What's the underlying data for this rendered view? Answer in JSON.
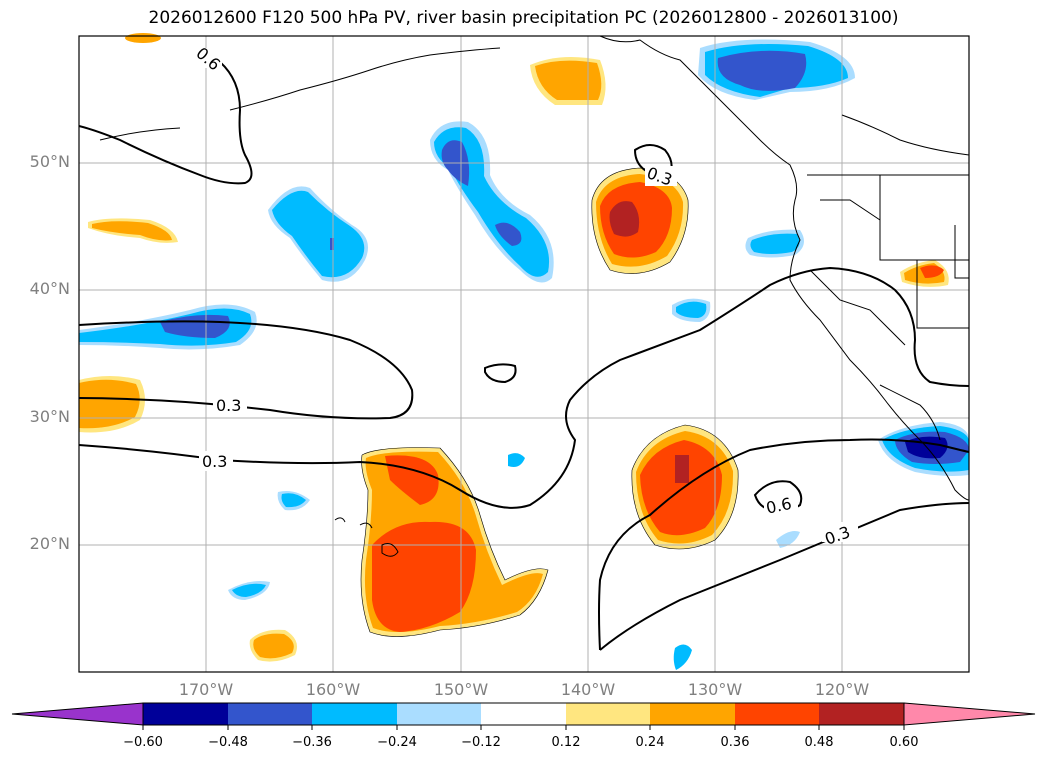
{
  "title": "2026012600 F120 500 hPa PV, river basin precipitation PC (2026012800 - 2026013100)",
  "lat_labels": [
    "50°N",
    "40°N",
    "30°N",
    "20°N"
  ],
  "lon_labels": [
    "170°W",
    "160°W",
    "150°W",
    "140°W",
    "130°W",
    "120°W"
  ],
  "contour_labels": [
    "0.6",
    "0.3",
    "0.3",
    "0.3",
    "0.6",
    "0.3"
  ],
  "colorbar": {
    "ticks": [
      "−0.60",
      "−0.48",
      "−0.36",
      "−0.24",
      "−0.12",
      "0.12",
      "0.24",
      "0.36",
      "0.48",
      "0.60"
    ],
    "colors": [
      "#9933cc",
      "#000099",
      "#3355cc",
      "#00bbff",
      "#aaddff",
      "#ffffff",
      "#ffe680",
      "#ffa500",
      "#ff4400",
      "#b22222",
      "#ff88aa"
    ]
  },
  "colors": {
    "purple": "#9933cc",
    "navy": "#000099",
    "blue": "#3355cc",
    "cyan": "#00bbff",
    "lightblue": "#aaddff",
    "yellow": "#ffe680",
    "orange": "#ffa500",
    "redorange": "#ff4400",
    "darkred": "#b22222",
    "pink": "#ff88aa"
  }
}
